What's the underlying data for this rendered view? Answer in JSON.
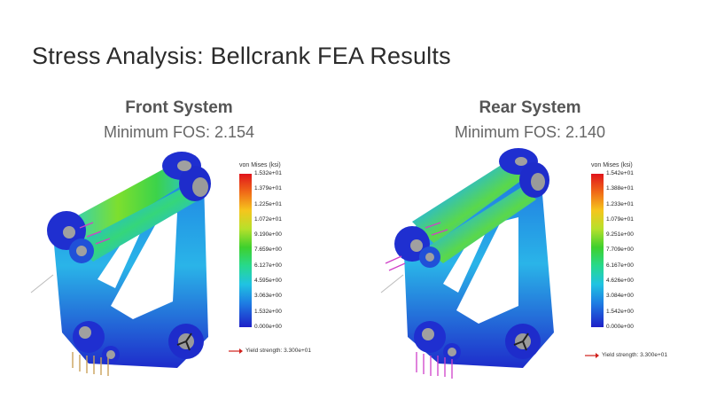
{
  "slide": {
    "title": "Stress Analysis: Bellcrank FEA Results"
  },
  "panels": [
    {
      "name": "Front System",
      "fos": "Minimum FOS: 2.154",
      "legend": {
        "title": "von Mises (ksi)",
        "labels": [
          "1.532e+01",
          "1.379e+01",
          "1.225e+01",
          "1.072e+01",
          "9.190e+00",
          "7.659e+00",
          "6.127e+00",
          "4.595e+00",
          "3.063e+00",
          "1.532e+00",
          "0.000e+00"
        ]
      },
      "yield": "Yield strength: 3.300e+01"
    },
    {
      "name": "Rear System",
      "fos": "Minimum FOS: 2.140",
      "legend": {
        "title": "von Mises (ksi)",
        "labels": [
          "1.542e+01",
          "1.388e+01",
          "1.233e+01",
          "1.079e+01",
          "9.251e+00",
          "7.709e+00",
          "6.167e+00",
          "4.626e+00",
          "3.084e+00",
          "1.542e+00",
          "0.000e+00"
        ]
      },
      "yield": "Yield strength: 3.300e+01"
    }
  ]
}
